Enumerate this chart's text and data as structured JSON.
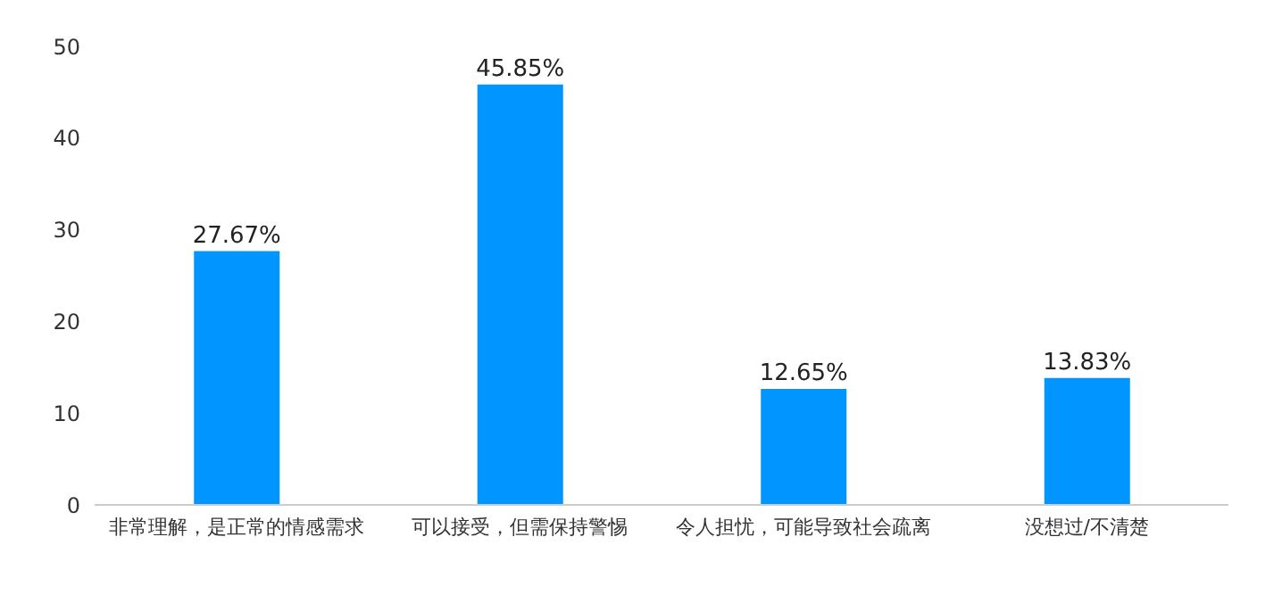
{
  "chart_data": {
    "type": "bar",
    "categories": [
      "非常理解，是正常的情感需求",
      "可以接受，但需保持警惕",
      "令人担忧，可能导致社会疏离",
      "没想过/不清楚"
    ],
    "values": [
      27.67,
      45.85,
      12.65,
      13.83
    ],
    "value_labels": [
      "27.67%",
      "45.85%",
      "12.65%",
      "13.83%"
    ],
    "color": "#0095ff",
    "ylim": [
      0,
      50
    ],
    "yticks": [
      0,
      10,
      20,
      30,
      40,
      50
    ],
    "grid": false
  }
}
